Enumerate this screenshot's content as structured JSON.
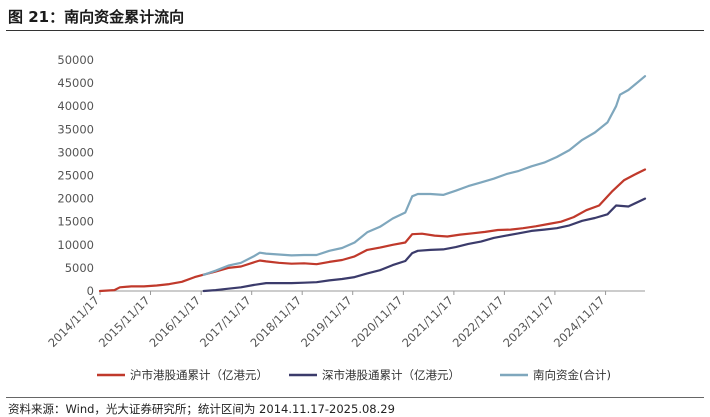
{
  "header": {
    "title": "图 21：南向资金累计流向"
  },
  "footer": {
    "source": "资料来源：Wind，光大证券研究所；统计区间为 2014.11.17-2025.08.29"
  },
  "chart_data": {
    "type": "line",
    "title": "图 21：南向资金累计流向",
    "xlabel": "",
    "ylabel": "",
    "ylim": [
      0,
      50000
    ],
    "xlim": [
      "2014-11-17",
      "2025-08-29"
    ],
    "yticks": [
      0,
      5000,
      10000,
      15000,
      20000,
      25000,
      30000,
      35000,
      40000,
      45000,
      50000
    ],
    "xticks": [
      "2014/11/17",
      "2015/11/17",
      "2016/11/17",
      "2017/11/17",
      "2018/11/17",
      "2019/11/17",
      "2020/11/17",
      "2021/11/17",
      "2022/11/17",
      "2023/11/17",
      "2024/11/17"
    ],
    "grid": false,
    "legend_position": "bottom",
    "series": [
      {
        "name": "沪市港股通累计（亿港元）",
        "color": "#c0392b",
        "points": [
          [
            "2014-11-17",
            0
          ],
          [
            "2015-03-01",
            200
          ],
          [
            "2015-04-10",
            800
          ],
          [
            "2015-07-01",
            1000
          ],
          [
            "2015-10-01",
            1000
          ],
          [
            "2016-01-01",
            1200
          ],
          [
            "2016-04-01",
            1500
          ],
          [
            "2016-07-01",
            2000
          ],
          [
            "2016-10-01",
            3000
          ],
          [
            "2016-12-01",
            3500
          ],
          [
            "2017-03-01",
            4200
          ],
          [
            "2017-06-01",
            5000
          ],
          [
            "2017-09-01",
            5300
          ],
          [
            "2017-12-01",
            6200
          ],
          [
            "2018-01-15",
            6600
          ],
          [
            "2018-03-01",
            6400
          ],
          [
            "2018-06-01",
            6100
          ],
          [
            "2018-09-01",
            5900
          ],
          [
            "2018-12-01",
            6000
          ],
          [
            "2019-03-01",
            5800
          ],
          [
            "2019-06-01",
            6300
          ],
          [
            "2019-09-01",
            6700
          ],
          [
            "2019-12-01",
            7500
          ],
          [
            "2020-03-01",
            8900
          ],
          [
            "2020-06-01",
            9400
          ],
          [
            "2020-09-01",
            10000
          ],
          [
            "2020-12-01",
            10500
          ],
          [
            "2021-01-20",
            12300
          ],
          [
            "2021-04-01",
            12400
          ],
          [
            "2021-07-01",
            12000
          ],
          [
            "2021-10-01",
            11800
          ],
          [
            "2022-01-01",
            12200
          ],
          [
            "2022-04-01",
            12500
          ],
          [
            "2022-07-01",
            12800
          ],
          [
            "2022-10-01",
            13200
          ],
          [
            "2023-01-01",
            13300
          ],
          [
            "2023-04-01",
            13600
          ],
          [
            "2023-07-01",
            14000
          ],
          [
            "2023-10-01",
            14500
          ],
          [
            "2024-01-01",
            15000
          ],
          [
            "2024-04-01",
            16000
          ],
          [
            "2024-07-01",
            17500
          ],
          [
            "2024-10-01",
            18500
          ],
          [
            "2025-01-01",
            21500
          ],
          [
            "2025-04-01",
            24000
          ],
          [
            "2025-06-15",
            25200
          ],
          [
            "2025-08-29",
            26300
          ]
        ]
      },
      {
        "name": "深市港股通累计（亿港元）",
        "color": "#3b3b6b",
        "points": [
          [
            "2016-12-05",
            0
          ],
          [
            "2017-03-01",
            200
          ],
          [
            "2017-06-01",
            500
          ],
          [
            "2017-09-01",
            800
          ],
          [
            "2017-12-01",
            1300
          ],
          [
            "2018-03-01",
            1700
          ],
          [
            "2018-06-01",
            1700
          ],
          [
            "2018-09-01",
            1700
          ],
          [
            "2018-12-01",
            1800
          ],
          [
            "2019-03-01",
            1900
          ],
          [
            "2019-06-01",
            2300
          ],
          [
            "2019-09-01",
            2600
          ],
          [
            "2019-12-01",
            3000
          ],
          [
            "2020-03-01",
            3800
          ],
          [
            "2020-06-01",
            4500
          ],
          [
            "2020-09-01",
            5600
          ],
          [
            "2020-12-01",
            6500
          ],
          [
            "2021-01-20",
            8200
          ],
          [
            "2021-03-01",
            8700
          ],
          [
            "2021-06-01",
            8900
          ],
          [
            "2021-09-01",
            9000
          ],
          [
            "2021-12-01",
            9500
          ],
          [
            "2022-03-01",
            10200
          ],
          [
            "2022-06-01",
            10700
          ],
          [
            "2022-09-01",
            11500
          ],
          [
            "2022-12-01",
            12000
          ],
          [
            "2023-03-01",
            12500
          ],
          [
            "2023-06-01",
            13000
          ],
          [
            "2023-09-01",
            13300
          ],
          [
            "2023-12-01",
            13600
          ],
          [
            "2024-03-01",
            14200
          ],
          [
            "2024-06-01",
            15200
          ],
          [
            "2024-09-01",
            15800
          ],
          [
            "2024-12-01",
            16600
          ],
          [
            "2025-02-01",
            18500
          ],
          [
            "2025-05-01",
            18300
          ],
          [
            "2025-08-29",
            20000
          ]
        ]
      },
      {
        "name": "南向资金(合计)",
        "color": "#7fa7bd",
        "points": [
          [
            "2016-12-05",
            3500
          ],
          [
            "2017-03-01",
            4400
          ],
          [
            "2017-06-01",
            5500
          ],
          [
            "2017-09-01",
            6100
          ],
          [
            "2017-12-01",
            7500
          ],
          [
            "2018-01-15",
            8300
          ],
          [
            "2018-03-01",
            8100
          ],
          [
            "2018-06-01",
            7900
          ],
          [
            "2018-09-01",
            7700
          ],
          [
            "2018-12-01",
            7800
          ],
          [
            "2019-03-01",
            7800
          ],
          [
            "2019-06-01",
            8700
          ],
          [
            "2019-09-01",
            9300
          ],
          [
            "2019-12-01",
            10500
          ],
          [
            "2020-03-01",
            12700
          ],
          [
            "2020-06-01",
            13900
          ],
          [
            "2020-09-01",
            15700
          ],
          [
            "2020-12-01",
            17000
          ],
          [
            "2021-01-20",
            20500
          ],
          [
            "2021-03-01",
            21000
          ],
          [
            "2021-06-01",
            21000
          ],
          [
            "2021-09-01",
            20800
          ],
          [
            "2021-12-01",
            21700
          ],
          [
            "2022-03-01",
            22700
          ],
          [
            "2022-06-01",
            23500
          ],
          [
            "2022-09-01",
            24300
          ],
          [
            "2022-12-01",
            25300
          ],
          [
            "2023-03-01",
            26000
          ],
          [
            "2023-06-01",
            27000
          ],
          [
            "2023-09-01",
            27800
          ],
          [
            "2023-12-01",
            29000
          ],
          [
            "2024-03-01",
            30500
          ],
          [
            "2024-06-01",
            32700
          ],
          [
            "2024-09-01",
            34300
          ],
          [
            "2024-12-01",
            36500
          ],
          [
            "2025-02-01",
            40000
          ],
          [
            "2025-03-01",
            42500
          ],
          [
            "2025-05-01",
            43500
          ],
          [
            "2025-08-29",
            46500
          ]
        ]
      }
    ]
  }
}
